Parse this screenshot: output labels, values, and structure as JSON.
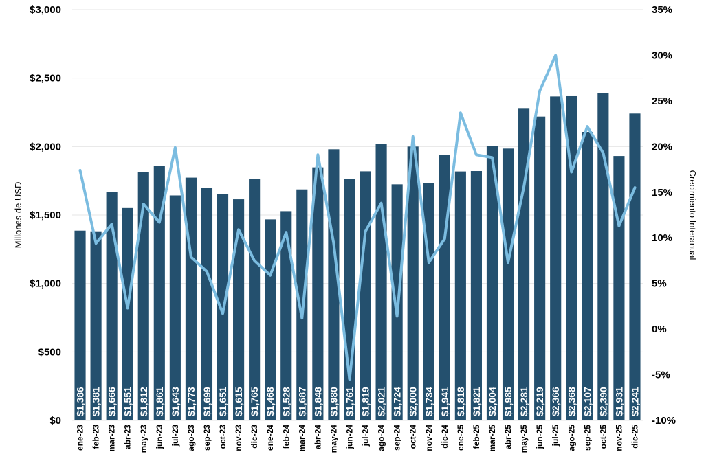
{
  "chart_data": {
    "type": "bar+line",
    "categories": [
      "ene-23",
      "feb-23",
      "mar-23",
      "abr-23",
      "may-23",
      "jun-23",
      "jul-23",
      "ago-23",
      "sep-23",
      "oct-23",
      "nov-23",
      "dic-23",
      "ene-24",
      "feb-24",
      "mar-24",
      "abr-24",
      "may-24",
      "jun-24",
      "jul-24",
      "ago-24",
      "sep-24",
      "oct-24",
      "nov-24",
      "dic-24",
      "ene-25",
      "feb-25",
      "mar-25",
      "abr-25",
      "may-25",
      "jun-25",
      "jul-25",
      "ago-25",
      "sep-25",
      "oct-25",
      "nov-25",
      "dic-25"
    ],
    "series": [
      {
        "type": "bar",
        "axis": "left",
        "color": "#24506E",
        "values": [
          1386,
          1381,
          1666,
          1551,
          1812,
          1861,
          1643,
          1773,
          1699,
          1651,
          1615,
          1765,
          1468,
          1528,
          1687,
          1848,
          1980,
          1761,
          1819,
          2021,
          1724,
          2000,
          1734,
          1941,
          1818,
          1821,
          2004,
          1985,
          2281,
          2219,
          2366,
          2368,
          2107,
          2390,
          1931,
          2241
        ],
        "labels": [
          "$1,386",
          "$1,381",
          "$1,666",
          "$1,551",
          "$1,812",
          "$1,861",
          "$1,643",
          "$1,773",
          "$1,699",
          "$1,651",
          "$1,615",
          "$1,765",
          "$1,468",
          "$1,528",
          "$1,687",
          "$1,848",
          "$1,980",
          "$1,761",
          "$1,819",
          "$2,021",
          "$1,724",
          "$2,000",
          "$1,734",
          "$1,941",
          "$1,818",
          "$1,821",
          "$2,004",
          "$1,985",
          "$2,281",
          "$2,219",
          "$2,366",
          "$2,368",
          "$2,107",
          "$2,390",
          "$1,931",
          "$2,241"
        ]
      },
      {
        "type": "line",
        "axis": "right",
        "color": "#7BBCE0",
        "values": [
          17.4,
          9.4,
          11.5,
          2.3,
          13.7,
          11.7,
          19.9,
          7.9,
          6.3,
          1.7,
          10.9,
          7.5,
          5.9,
          10.6,
          1.2,
          19.1,
          9.4,
          -5.5,
          10.7,
          13.8,
          1.4,
          21.1,
          7.3,
          9.9,
          23.7,
          19.1,
          18.8,
          7.3,
          15.6,
          26.1,
          30.0,
          17.2,
          22.2,
          19.3,
          11.3,
          15.5
        ]
      }
    ],
    "y_left": {
      "label": "Millones de USD",
      "min": 0,
      "max": 3000,
      "ticks": [
        0,
        500,
        1000,
        1500,
        2000,
        2500,
        3000
      ],
      "tick_labels": [
        "$0",
        "$500",
        "$1,000",
        "$1,500",
        "$2,000",
        "$2,500",
        "$3,000"
      ]
    },
    "y_right": {
      "label": "Crecimiento Interanual",
      "min": -10,
      "max": 35,
      "ticks": [
        -10,
        -5,
        0,
        5,
        10,
        15,
        20,
        25,
        30,
        35
      ],
      "tick_labels": [
        "-10%",
        "-5%",
        "0%",
        "5%",
        "10%",
        "15%",
        "20%",
        "25%",
        "30%",
        "35%"
      ]
    },
    "grid": true,
    "legend": "none"
  }
}
